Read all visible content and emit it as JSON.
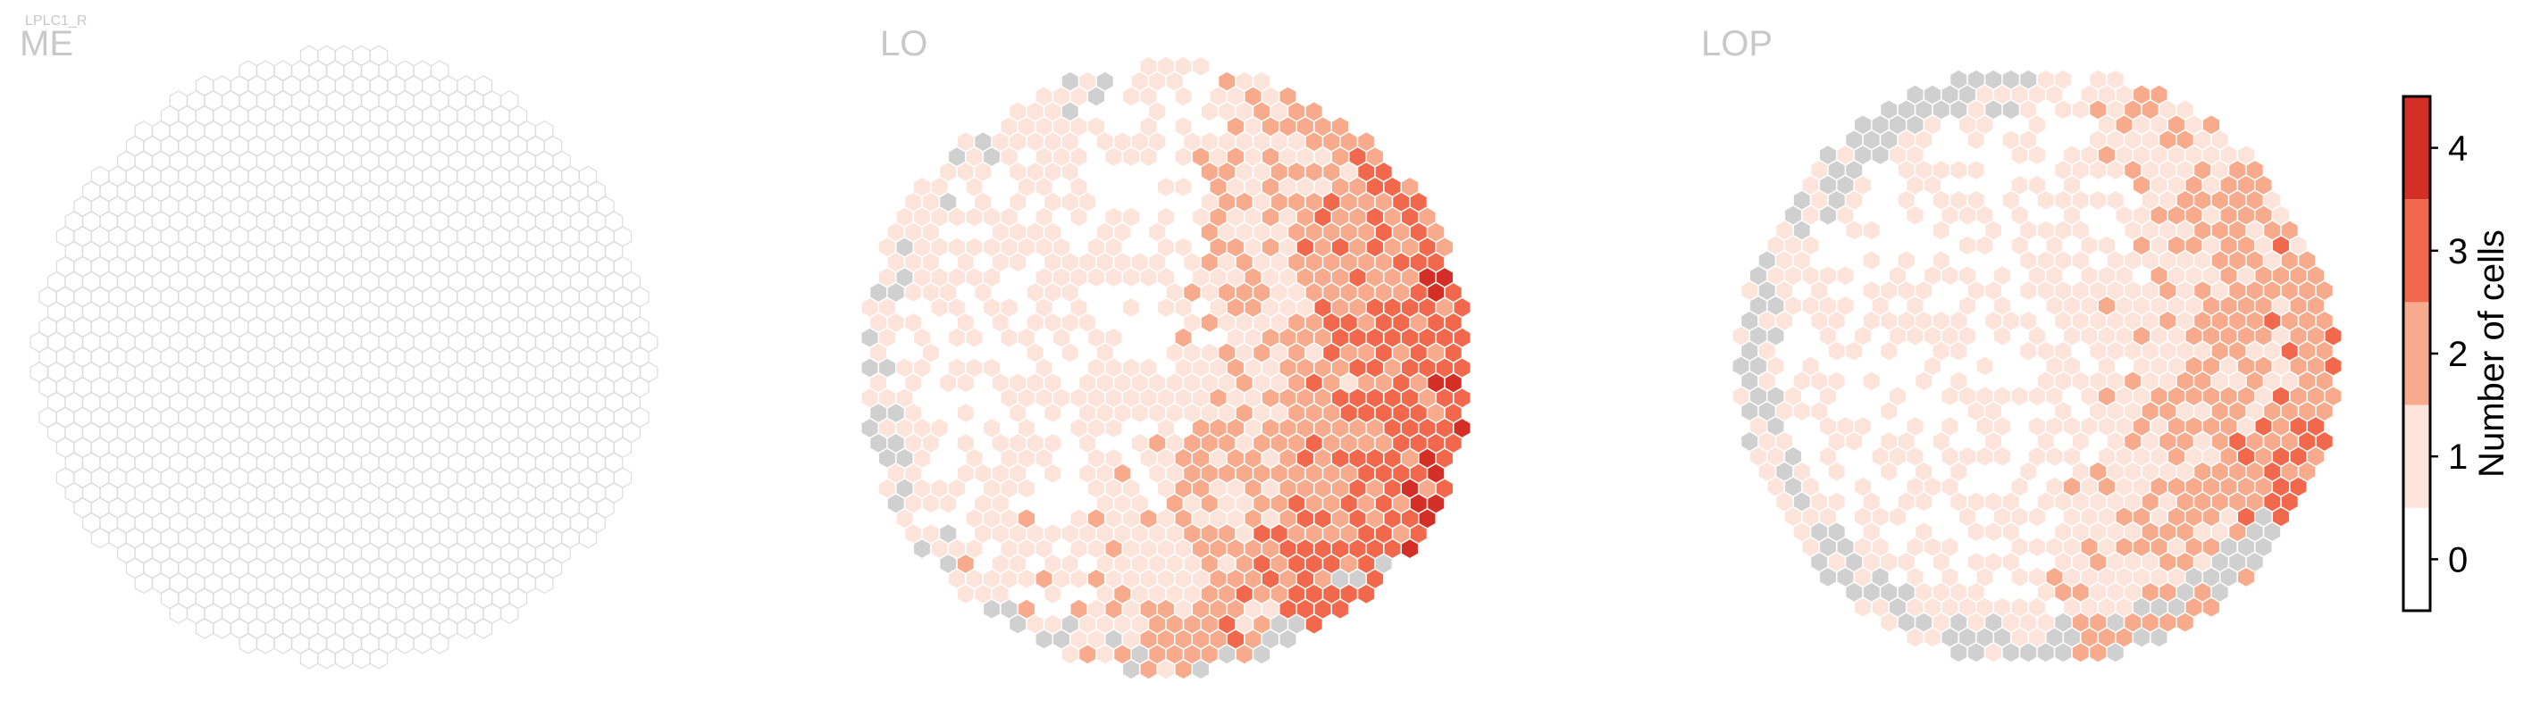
{
  "figure": {
    "subtitle": "LPLC1_R"
  },
  "chart_data": [
    {
      "type": "heatmap",
      "layout": "hexagonal",
      "title": "ME",
      "values": "all columns empty (outline only)"
    },
    {
      "type": "heatmap",
      "layout": "hexagonal",
      "title": "LO",
      "values": "per-column cell count 0-4; highest counts (3-4) concentrated right of center and lower middle; grey columns along left and bottom edges"
    },
    {
      "type": "heatmap",
      "layout": "hexagonal",
      "title": "LOP",
      "values": "per-column cell count 0-4; mostly 0-1 with 2-4 clusters on right side; many grey columns along left and bottom edges"
    }
  ],
  "colorbar": {
    "label": "Number of cells",
    "ticks": [
      "0",
      "1",
      "2",
      "3",
      "4"
    ],
    "colors": [
      "#ffffff",
      "#fce4da",
      "#f7aa8c",
      "#f2684c",
      "#d42f27"
    ]
  },
  "colors": {
    "missing": "#d0d0d0",
    "edge": "#e6e6e6",
    "colorbar_frame": "#000000"
  }
}
